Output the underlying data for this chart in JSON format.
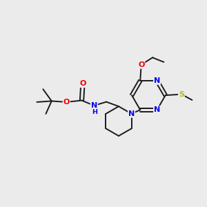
{
  "background_color": "#EBEBEB",
  "bond_color": "#1a1a1a",
  "atom_colors": {
    "N": "#0000EE",
    "O": "#EE0000",
    "S": "#BBBB00",
    "C": "#1a1a1a"
  },
  "figsize": [
    3.0,
    3.0
  ],
  "dpi": 100,
  "xlim": [
    0,
    10
  ],
  "ylim": [
    0,
    10
  ]
}
